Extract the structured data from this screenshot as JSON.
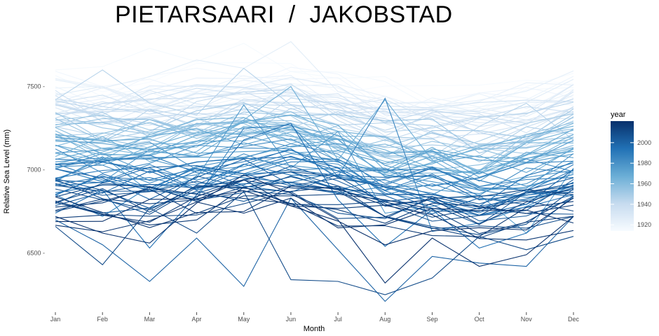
{
  "chart_data": {
    "type": "line",
    "title": "PIETARSAARI  /  JAKOBSTAD",
    "xlabel": "Month",
    "ylabel": "Relative Sea Level (mm)",
    "categories": [
      "Jan",
      "Feb",
      "Mar",
      "Apr",
      "May",
      "Jun",
      "Jul",
      "Aug",
      "Sep",
      "Oct",
      "Nov",
      "Dec"
    ],
    "ylim": [
      6170,
      7810
    ],
    "yticks": [
      6500,
      7000,
      7500
    ],
    "ytick_labels": [
      "6500 -",
      "7000 -",
      "7500 -"
    ],
    "grid": false,
    "legend": {
      "title": "year",
      "placement": "right",
      "ticks": [
        1920,
        1940,
        1960,
        1980,
        2000
      ],
      "range": [
        1914,
        2021
      ],
      "color_low": "#f7fbff",
      "color_high": "#08306b"
    },
    "series_years": [
      1914,
      2021
    ],
    "highlight_series": [
      {
        "year": 1915,
        "values": [
          7600,
          7620,
          7730,
          7650,
          7760,
          7590,
          7550,
          7560,
          7410,
          7350,
          7500,
          7580
        ]
      },
      {
        "year": 1925,
        "values": [
          7540,
          7490,
          7560,
          7660,
          7610,
          7770,
          7470,
          7420,
          7300,
          7370,
          7320,
          7450
        ]
      },
      {
        "year": 1945,
        "values": [
          7420,
          7600,
          7400,
          7330,
          7610,
          7390,
          7250,
          7200,
          7080,
          7260,
          7400,
          7180
        ]
      },
      {
        "year": 1965,
        "values": [
          7080,
          7200,
          7050,
          7110,
          7300,
          7500,
          7060,
          7420,
          7060,
          6900,
          6960,
          7130
        ]
      },
      {
        "year": 1975,
        "values": [
          6930,
          7080,
          6870,
          6950,
          7390,
          7010,
          7230,
          6740,
          6780,
          6850,
          6620,
          7010
        ]
      },
      {
        "year": 1985,
        "values": [
          6850,
          6720,
          6900,
          6830,
          7250,
          7270,
          6960,
          7430,
          6630,
          6680,
          6780,
          6910
        ]
      },
      {
        "year": 1995,
        "values": [
          6740,
          6880,
          6530,
          6850,
          7180,
          7280,
          6820,
          6540,
          6760,
          6530,
          6620,
          6840
        ]
      },
      {
        "year": 2000,
        "values": [
          6700,
          6550,
          6330,
          6590,
          6300,
          6830,
          6520,
          6210,
          6480,
          6440,
          6420,
          6720
        ]
      },
      {
        "year": 2010,
        "values": [
          6660,
          6430,
          6770,
          6620,
          6870,
          6340,
          6330,
          6250,
          6350,
          6600,
          6520,
          6600
        ]
      },
      {
        "year": 2020,
        "values": [
          6720,
          6620,
          6560,
          6800,
          6970,
          6860,
          6700,
          6320,
          6590,
          6420,
          6490,
          6720
        ]
      }
    ]
  }
}
